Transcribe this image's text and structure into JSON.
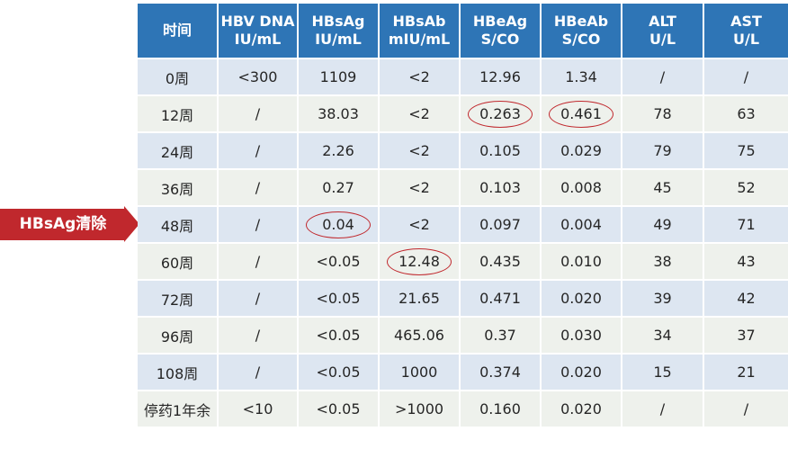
{
  "table": {
    "headers": [
      "时间",
      "HBV DNA\nIU/mL",
      "HBsAg\nIU/mL",
      "HBsAb\nmIU/mL",
      "HBeAg\nS/CO",
      "HBeAb\nS/CO",
      "ALT\nU/L",
      "AST\nU/L"
    ],
    "rows": [
      [
        "0周",
        "<300",
        "1109",
        "<2",
        "12.96",
        "1.34",
        "/",
        "/"
      ],
      [
        "12周",
        "/",
        "38.03",
        "<2",
        "0.263",
        "0.461",
        "78",
        "63"
      ],
      [
        "24周",
        "/",
        "2.26",
        "<2",
        "0.105",
        "0.029",
        "79",
        "75"
      ],
      [
        "36周",
        "/",
        "0.27",
        "<2",
        "0.103",
        "0.008",
        "45",
        "52"
      ],
      [
        "48周",
        "/",
        "0.04",
        "<2",
        "0.097",
        "0.004",
        "49",
        "71"
      ],
      [
        "60周",
        "/",
        "<0.05",
        "12.48",
        "0.435",
        "0.010",
        "38",
        "43"
      ],
      [
        "72周",
        "/",
        "<0.05",
        "21.65",
        "0.471",
        "0.020",
        "39",
        "42"
      ],
      [
        "96周",
        "/",
        "<0.05",
        "465.06",
        "0.37",
        "0.030",
        "34",
        "37"
      ],
      [
        "108周",
        "/",
        "<0.05",
        "1000",
        "0.374",
        "0.020",
        "15",
        "21"
      ],
      [
        "停药1年余",
        "<10",
        "<0.05",
        ">1000",
        "0.160",
        "0.020",
        "/",
        "/"
      ]
    ]
  },
  "annotation": {
    "label": "HBsAg清除"
  },
  "colors": {
    "header_bg": "#2e75b6",
    "row_odd": "#dde6f1",
    "row_even": "#eef1ec",
    "highlight": "#c0282d"
  }
}
